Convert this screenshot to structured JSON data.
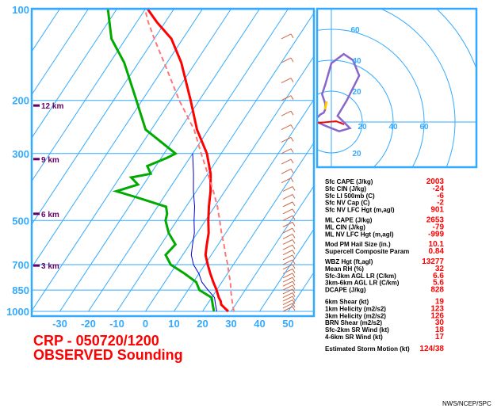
{
  "header": {
    "station_line": "CRP - 050720/1200",
    "type_line": "OBSERVED Sounding"
  },
  "credit": "NWS/NCEP/SPC",
  "colors": {
    "frame": "#33aaff",
    "temperature": "#ff0000",
    "dewpoint": "#00aa00",
    "parcel": "#ff7777",
    "wetbulb": "#0000cc",
    "hodograph": "#8866cc",
    "stat_value": "#ff0000",
    "height_label": "#660066"
  },
  "chart_data": [
    {
      "type": "line",
      "title": "",
      "xlabel": "",
      "ylabel": "",
      "y_scale": "log-pressure",
      "pressure_ticks": [
        100,
        200,
        300,
        500,
        700,
        850,
        1000
      ],
      "temperature_ticks": [
        -30,
        -20,
        -10,
        0,
        10,
        20,
        30,
        40,
        50
      ],
      "height_labels": [
        "12 km",
        "9 km",
        "6 km",
        "3 km"
      ],
      "height_label_pressures": [
        208,
        313,
        475,
        705
      ],
      "series": [
        {
          "values_key": "temperature",
          "points": [
            [
              1000,
              29
            ],
            [
              975,
              27
            ],
            [
              950,
              25
            ],
            [
              925,
              24
            ],
            [
              900,
              22.5
            ],
            [
              850,
              20
            ],
            [
              800,
              17
            ],
            [
              750,
              14
            ],
            [
              700,
              11
            ],
            [
              650,
              8
            ],
            [
              600,
              6
            ],
            [
              550,
              4
            ],
            [
              500,
              1
            ],
            [
              450,
              -2
            ],
            [
              400,
              -5
            ],
            [
              350,
              -9
            ],
            [
              300,
              -15
            ],
            [
              250,
              -24
            ],
            [
              200,
              -33
            ],
            [
              150,
              -45
            ],
            [
              125,
              -54
            ],
            [
              110,
              -63
            ],
            [
              100,
              -69
            ]
          ]
        },
        {
          "values_key": "dewpoint",
          "points": [
            [
              1000,
              24
            ],
            [
              950,
              22
            ],
            [
              900,
              20
            ],
            [
              850,
              14
            ],
            [
              800,
              11
            ],
            [
              750,
              5
            ],
            [
              700,
              -2
            ],
            [
              650,
              -6
            ],
            [
              600,
              -5
            ],
            [
              550,
              -10
            ],
            [
              500,
              -14
            ],
            [
              475,
              -15
            ],
            [
              450,
              -17
            ],
            [
              420,
              -29
            ],
            [
              400,
              -38
            ],
            [
              380,
              -32
            ],
            [
              360,
              -36
            ],
            [
              350,
              -30
            ],
            [
              330,
              -33
            ],
            [
              310,
              -28
            ],
            [
              300,
              -26
            ],
            [
              280,
              -32
            ],
            [
              250,
              -42
            ],
            [
              200,
              -52
            ],
            [
              150,
              -65
            ],
            [
              125,
              -75
            ],
            [
              100,
              -83
            ]
          ]
        },
        {
          "values_key": "wetbulb",
          "points": [
            [
              1000,
              25
            ],
            [
              950,
              23
            ],
            [
              900,
              21
            ],
            [
              850,
              17
            ],
            [
              800,
              13
            ],
            [
              750,
              10
            ],
            [
              700,
              6
            ],
            [
              650,
              3
            ],
            [
              600,
              1
            ],
            [
              550,
              -1
            ],
            [
              500,
              -4
            ],
            [
              450,
              -7
            ],
            [
              400,
              -11
            ],
            [
              350,
              -15
            ],
            [
              300,
              -20
            ]
          ]
        },
        {
          "values_key": "parcel",
          "points": [
            [
              1000,
              31
            ],
            [
              950,
              29
            ],
            [
              900,
              27
            ],
            [
              850,
              25
            ],
            [
              800,
              23
            ],
            [
              750,
              20.5
            ],
            [
              700,
              18
            ],
            [
              650,
              15
            ],
            [
              600,
              12
            ],
            [
              550,
              8.5
            ],
            [
              500,
              5
            ],
            [
              450,
              1
            ],
            [
              400,
              -4
            ],
            [
              350,
              -10
            ],
            [
              300,
              -17
            ],
            [
              250,
              -25
            ],
            [
              200,
              -37
            ],
            [
              150,
              -51
            ],
            [
              125,
              -60
            ],
            [
              110,
              -66
            ],
            [
              100,
              -70
            ]
          ]
        }
      ]
    },
    {
      "type": "scatter",
      "title": "",
      "ring_labels_top": [
        "60",
        "40",
        "20"
      ],
      "ring_labels_right": [
        "20",
        "40",
        "60"
      ],
      "ring_labels_bottom": [
        "20"
      ],
      "hodograph_points": [
        [
          -13,
          -1
        ],
        [
          -9,
          3
        ],
        [
          -7,
          5
        ],
        [
          -5,
          6
        ],
        [
          -4,
          8
        ],
        [
          -4,
          12
        ],
        [
          -6,
          18
        ],
        [
          -4,
          24
        ],
        [
          0,
          38
        ],
        [
          8,
          44
        ],
        [
          14,
          40
        ],
        [
          18,
          30
        ],
        [
          10,
          14
        ],
        [
          4,
          4
        ],
        [
          12,
          -4
        ],
        [
          5,
          -6
        ],
        [
          -5,
          -2
        ],
        [
          -15,
          3
        ],
        [
          -16,
          7
        ]
      ]
    }
  ],
  "stats": {
    "group1": [
      {
        "label": "Sfc CAPE (J/kg)",
        "value": "2003"
      },
      {
        "label": "Sfc CIN (J/kg)",
        "value": "-24"
      },
      {
        "label": "Sfc LI 500mb (C)",
        "value": "-6"
      },
      {
        "label": "Sfc NV Cap (C)",
        "value": "-2"
      },
      {
        "label": "Sfc NV LFC Hgt (m,agl)",
        "value": "901"
      }
    ],
    "group2": [
      {
        "label": "ML CAPE (J/kg)",
        "value": "2653"
      },
      {
        "label": "ML CIN (J/kg)",
        "value": "-79"
      },
      {
        "label": "ML NV LFC Hgt (m,agl)",
        "value": "-999"
      }
    ],
    "group3": [
      {
        "label": "Mod PM Hail Size (in.)",
        "value": "10.1"
      },
      {
        "label": "Supercell Composite Param",
        "value": "0.84"
      }
    ],
    "group4": [
      {
        "label": "WBZ Hgt (ft,agl)",
        "value": "13277"
      },
      {
        "label": "Mean RH (%)",
        "value": "32"
      },
      {
        "label": "Sfc-3km AGL LR (C/km)",
        "value": "6.6"
      },
      {
        "label": "3km-6km AGL LR (C/km)",
        "value": "5.6"
      },
      {
        "label": "DCAPE (J/kg)",
        "value": "828"
      }
    ],
    "group5": [
      {
        "label": "6km Shear (kt)",
        "value": "19"
      },
      {
        "label": "1km Helicity (m2/s2)",
        "value": "123"
      },
      {
        "label": "3km Helicity (m2/s2)",
        "value": "126"
      },
      {
        "label": "BRN Shear (m2/s2)",
        "value": "30"
      },
      {
        "label": "Sfc-2km SR Wind (kt)",
        "value": "18"
      },
      {
        "label": "4-6km SR Wind (kt)",
        "value": "17"
      }
    ],
    "storm_motion": {
      "label": "Estimated Storm Motion (kt)",
      "value": "124/38"
    }
  }
}
